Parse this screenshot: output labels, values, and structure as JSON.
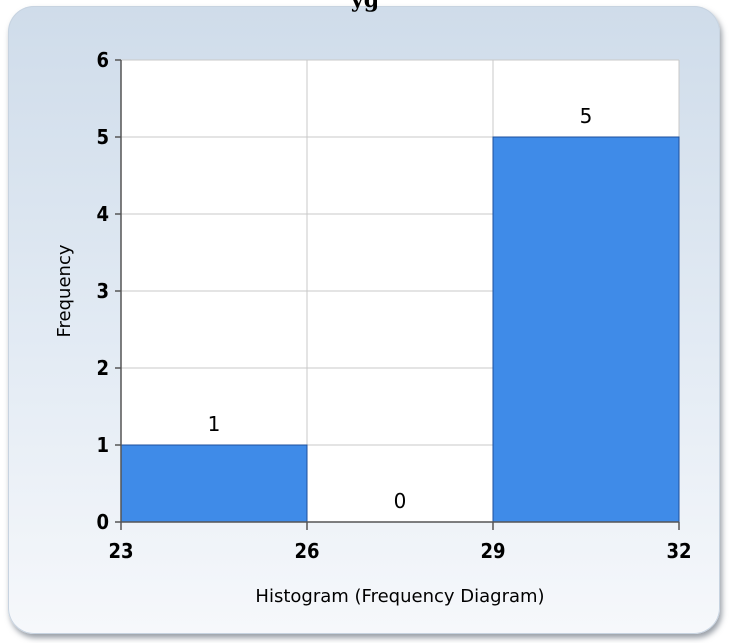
{
  "header": {
    "title_fragment": "yg"
  },
  "chart_data": {
    "type": "bar",
    "bins": [
      {
        "from": 23,
        "to": 26,
        "value": 1
      },
      {
        "from": 26,
        "to": 29,
        "value": 0
      },
      {
        "from": 29,
        "to": 32,
        "value": 5
      }
    ],
    "x_ticks": [
      "23",
      "26",
      "29",
      "32"
    ],
    "y_ticks": [
      "0",
      "1",
      "2",
      "3",
      "4",
      "5",
      "6"
    ],
    "xlim": [
      23,
      32
    ],
    "ylim": [
      0,
      6
    ],
    "xlabel": "Histogram (Frequency Diagram)",
    "ylabel": "Frequency",
    "grid": true,
    "colors": {
      "bar_fill": "#3f8be8",
      "bar_stroke": "#1c4f9c",
      "grid": "#c9c9c9",
      "plot_background": "#ffffff",
      "panel_background": "#dbe5f0"
    }
  }
}
